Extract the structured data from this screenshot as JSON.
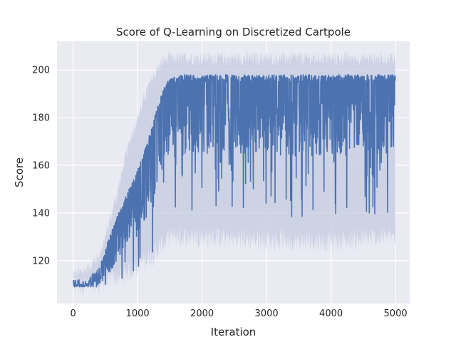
{
  "chart_data": {
    "type": "line",
    "title": "Score of Q-Learning on Discretized Cartpole",
    "xlabel": "Iteration",
    "ylabel": "Score",
    "xlim": [
      -250,
      5220
    ],
    "ylim": [
      102,
      212
    ],
    "x_ticks": [
      0,
      1000,
      2000,
      3000,
      4000,
      5000
    ],
    "y_ticks": [
      120,
      140,
      160,
      180,
      200
    ],
    "grid": true,
    "legend": "none",
    "colors": {
      "line": "#4c72b0",
      "band": "#c3cbe0",
      "background": "#eaeaf2",
      "grid": "#ffffff"
    },
    "series": [
      {
        "x": [
          0,
          200,
          400,
          500,
          600,
          700,
          800,
          900,
          1000,
          1100,
          1200,
          1300,
          1400,
          1500,
          1700,
          2000,
          2500,
          3000,
          3500,
          4000,
          4500,
          5000
        ],
        "mean": [
          110,
          110,
          113,
          120,
          127,
          133,
          137,
          143,
          145,
          150,
          158,
          166,
          174,
          183,
          185,
          187,
          187,
          188,
          187,
          188,
          188,
          188
        ],
        "upper": [
          112,
          112,
          117,
          125,
          133,
          140,
          146,
          152,
          158,
          166,
          174,
          184,
          192,
          197,
          198,
          198,
          198,
          198,
          198,
          198,
          198,
          198
        ],
        "lower": [
          109,
          109,
          110,
          112,
          116,
          121,
          126,
          131,
          133,
          136,
          142,
          150,
          158,
          162,
          163,
          165,
          165,
          165,
          163,
          165,
          163,
          165
        ],
        "band_upper": [
          114,
          116,
          122,
          130,
          140,
          150,
          162,
          172,
          180,
          188,
          195,
          200,
          204,
          205,
          205,
          205,
          205,
          205,
          205,
          205,
          205,
          205
        ],
        "band_lower": [
          108,
          108,
          108,
          109,
          110,
          111,
          112,
          114,
          116,
          118,
          120,
          122,
          125,
          128,
          128,
          128,
          127,
          127,
          126,
          126,
          127,
          128
        ]
      }
    ]
  }
}
